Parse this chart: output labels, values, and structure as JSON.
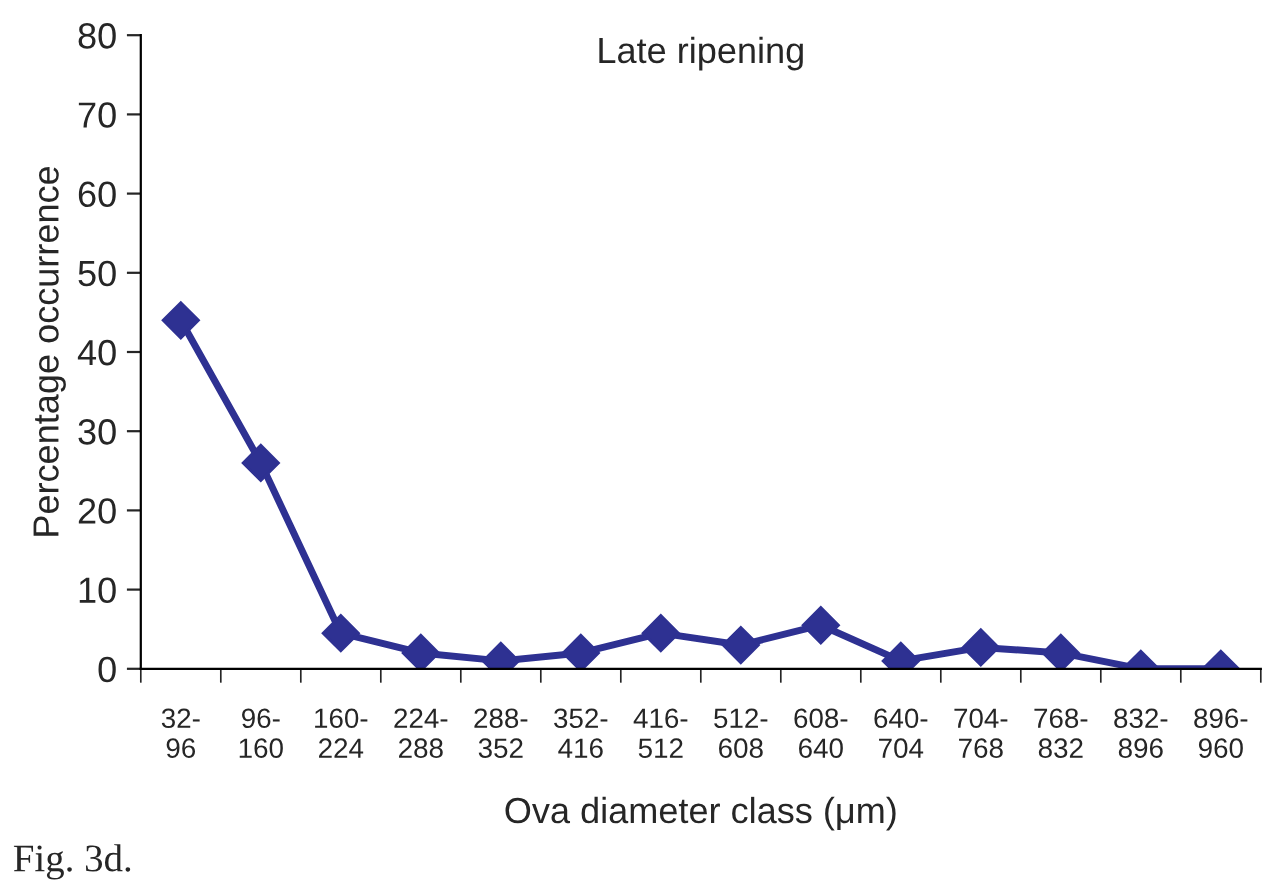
{
  "chart_data": {
    "type": "line",
    "title": "Late ripening",
    "xlabel": "Ova diameter class (μm)",
    "ylabel": "Percentage occurrence",
    "categories": [
      "32-\n96",
      "96-\n160",
      "160-\n224",
      "224-\n288",
      "288-\n352",
      "352-\n416",
      "416-\n512",
      "512-\n608",
      "608-\n640",
      "640-\n704",
      "704-\n768",
      "768-\n832",
      "832-\n896",
      "896-\n960"
    ],
    "series": [
      {
        "color": "#2e3192",
        "values": [
          44,
          26,
          4.5,
          2,
          1,
          2,
          4.5,
          3,
          5.5,
          1,
          2.7,
          2,
          0,
          0
        ]
      }
    ],
    "ylim": [
      0,
      80
    ],
    "yticks": [
      0,
      10,
      20,
      30,
      40,
      50,
      60,
      70,
      80
    ],
    "marker": "diamond",
    "line_style": "solid",
    "grid": false,
    "legend": false,
    "annotations": [
      "Fig. 3d."
    ]
  }
}
